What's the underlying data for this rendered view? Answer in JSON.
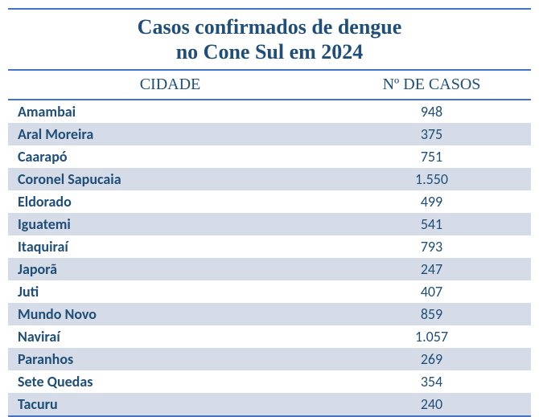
{
  "title_line1": "Casos confirmados de dengue",
  "title_line2": "no Cone Sul em 2024",
  "columns": {
    "city_header": "CIDADE",
    "cases_header": "Nº DE CASOS"
  },
  "rows": [
    {
      "city": "Amambai",
      "cases": "948"
    },
    {
      "city": "Aral Moreira",
      "cases": "375"
    },
    {
      "city": "Caarapó",
      "cases": "751"
    },
    {
      "city": "Coronel Sapucaia",
      "cases": "1.550"
    },
    {
      "city": "Eldorado",
      "cases": "499"
    },
    {
      "city": "Iguatemi",
      "cases": "541"
    },
    {
      "city": "Itaquiraí",
      "cases": "793"
    },
    {
      "city": "Japorã",
      "cases": "247"
    },
    {
      "city": "Juti",
      "cases": "407"
    },
    {
      "city": "Mundo Novo",
      "cases": "859"
    },
    {
      "city": "Naviraí",
      "cases": "1.057"
    },
    {
      "city": "Paranhos",
      "cases": "269"
    },
    {
      "city": "Sete Quedas",
      "cases": "354"
    },
    {
      "city": "Tacuru",
      "cases": "240"
    }
  ],
  "styling": {
    "type": "table",
    "title_color": "#1f4e79",
    "header_color": "#1f4e79",
    "text_color": "#1f4e79",
    "border_color": "#4472c4",
    "row_bg_odd": "#ffffff",
    "row_bg_even": "#d5dce8",
    "title_fontsize": 26,
    "header_fontsize": 20,
    "row_fontsize": 18,
    "city_col_width_pct": 62,
    "cases_col_width_pct": 38,
    "title_font": "Times New Roman",
    "header_font": "Times New Roman",
    "body_font": "Calibri"
  }
}
